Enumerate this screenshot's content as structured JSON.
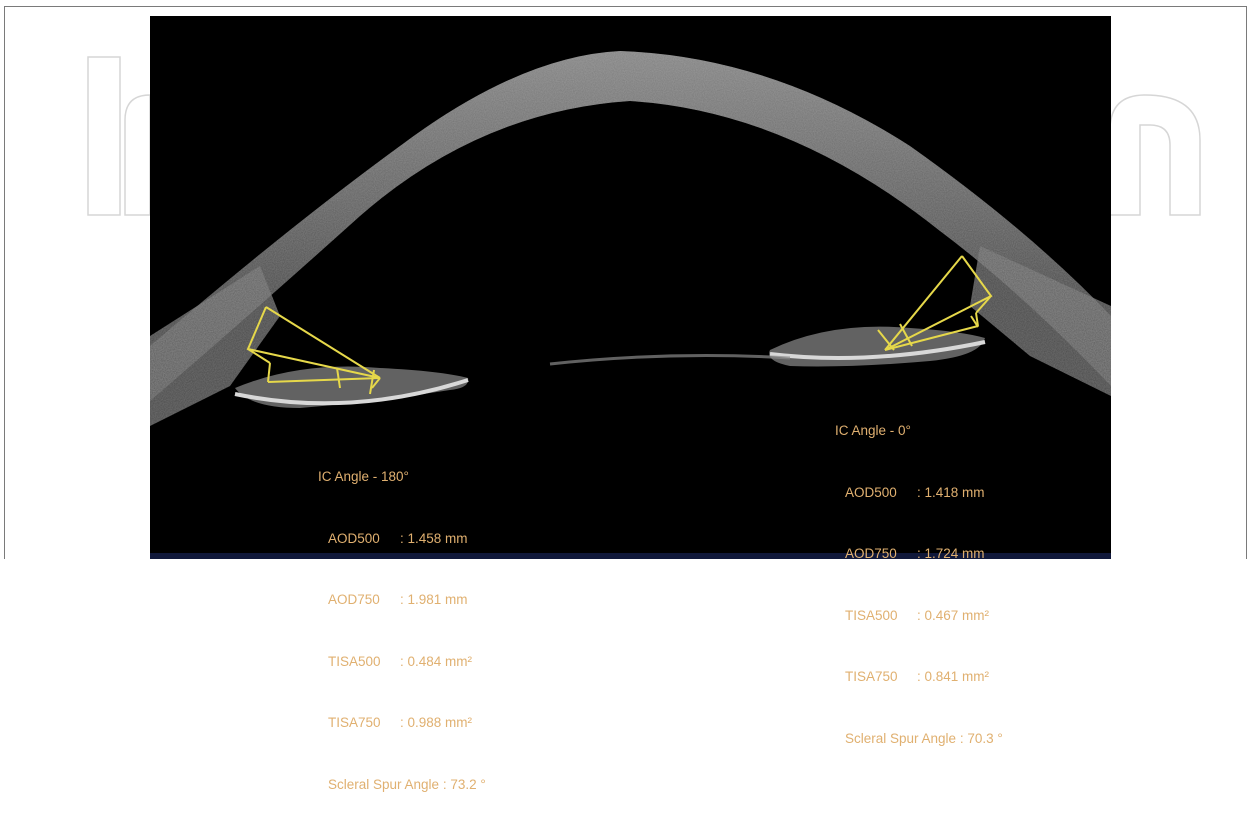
{
  "left_angle": {
    "title": "IC Angle - 180°",
    "rows": [
      {
        "label": "AOD500",
        "value": ": 1.458 mm"
      },
      {
        "label": "AOD750",
        "value": ": 1.981 mm"
      },
      {
        "label": "TISA500",
        "value": ": 0.484 mm²"
      },
      {
        "label": "TISA750",
        "value": ": 0.988 mm²"
      }
    ],
    "spur": "Scleral Spur Angle : 73.2 °"
  },
  "right_angle": {
    "title": "IC Angle - 0°",
    "rows": [
      {
        "label": "AOD500",
        "value": ": 1.418 mm"
      },
      {
        "label": "AOD750",
        "value": ": 1.724 mm"
      },
      {
        "label": "TISA500",
        "value": ": 0.467 mm²"
      },
      {
        "label": "TISA750",
        "value": ": 0.841 mm²"
      }
    ],
    "spur": "Scleral Spur Angle : 70.3 °"
  },
  "colors": {
    "measurement_lines": "#e6d84a",
    "annotation_text": "#e0b070",
    "background": "#000000",
    "watermark": "#d8d8d8"
  }
}
